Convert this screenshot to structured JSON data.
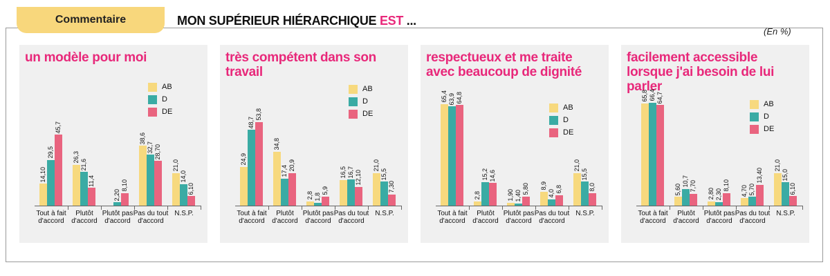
{
  "header": {
    "tab": "Commentaire",
    "title_main": "MON SUPÉRIEUR HIÉRARCHIQUE",
    "title_highlight": "EST",
    "title_end": "...",
    "unit": "(En %)"
  },
  "chart_data": [
    {
      "type": "bar",
      "title": "un modèle pour moi",
      "categories": [
        "Tout à fait d'accord",
        "Plutôt d'accord",
        "Plutôt pas d'accord",
        "Pas du tout d'accord",
        "N.S.P."
      ],
      "series": [
        {
          "name": "AB",
          "color": "#f7d97e",
          "values": [
            14.1,
            26.3,
            null,
            38.6,
            21.0
          ],
          "value_labels": [
            "14,10",
            "26,3",
            null,
            "38,6",
            "21,0"
          ]
        },
        {
          "name": "D",
          "color": "#3aaba4",
          "values": [
            29.5,
            21.6,
            2.2,
            32.7,
            14.0
          ],
          "value_labels": [
            "29,5",
            "21,6",
            "2,20",
            "32,7",
            "14,0"
          ]
        },
        {
          "name": "DE",
          "color": "#e9647f",
          "values": [
            45.7,
            11.4,
            8.1,
            28.7,
            6.1
          ],
          "value_labels": [
            "45,7",
            "11,4",
            "8,10",
            "28,70",
            "6,10"
          ]
        }
      ]
    },
    {
      "type": "bar",
      "title": "très compétent dans son travail",
      "categories": [
        "Tout à fait d'accord",
        "Plutôt d'accord",
        "Plutôt pas d'accord",
        "Pas du tout d'accord",
        "N.S.P."
      ],
      "series": [
        {
          "name": "AB",
          "color": "#f7d97e",
          "values": [
            24.9,
            34.8,
            2.8,
            16.5,
            21.0
          ],
          "value_labels": [
            "24,9",
            "34,8",
            "2,8",
            "16,5",
            "21,0"
          ]
        },
        {
          "name": "D",
          "color": "#3aaba4",
          "values": [
            48.7,
            17.4,
            1.8,
            16.7,
            15.5
          ],
          "value_labels": [
            "48,7",
            "17,4",
            "1,8",
            "16,7",
            "15,5"
          ]
        },
        {
          "name": "DE",
          "color": "#e9647f",
          "values": [
            53.8,
            20.9,
            5.9,
            12.1,
            7.3
          ],
          "value_labels": [
            "53,8",
            "20,9",
            "5,9",
            "12,10",
            "7,30"
          ]
        }
      ]
    },
    {
      "type": "bar",
      "title": "respectueux et me traite avec beaucoup de dignité",
      "categories": [
        "Tout à fait d'accord",
        "Plutôt d'accord",
        "Plutôt pas d'accord",
        "Pas du tout d'accord",
        "N.S.P."
      ],
      "series": [
        {
          "name": "AB",
          "color": "#f7d97e",
          "values": [
            65.4,
            2.8,
            1.9,
            8.9,
            21.0
          ],
          "value_labels": [
            "65,4",
            "2,8",
            "1,90",
            "8,9",
            "21,0"
          ]
        },
        {
          "name": "D",
          "color": "#3aaba4",
          "values": [
            63.9,
            15.2,
            1.4,
            4.0,
            15.5
          ],
          "value_labels": [
            "63,9",
            "15,2",
            "1,40",
            "4,0",
            "15,5"
          ]
        },
        {
          "name": "DE",
          "color": "#e9647f",
          "values": [
            64.8,
            14.6,
            5.8,
            6.8,
            8.0
          ],
          "value_labels": [
            "64,8",
            "14,6",
            "5,80",
            "6,8",
            "8,0"
          ]
        }
      ]
    },
    {
      "type": "bar",
      "title": "facilement accessible lorsque j'ai besoin de lui parler",
      "categories": [
        "Tout à fait d'accord",
        "Plutôt d'accord",
        "Plutôt pas d'accord",
        "Pas du tout d'accord",
        "N.S.P."
      ],
      "series": [
        {
          "name": "AB",
          "color": "#f7d97e",
          "values": [
            65.8,
            5.6,
            2.8,
            4.7,
            21.0
          ],
          "value_labels": [
            "65,8",
            "5,60",
            "2,80",
            "4,70",
            "21,0"
          ]
        },
        {
          "name": "D",
          "color": "#3aaba4",
          "values": [
            66.4,
            10.7,
            2.3,
            5.7,
            15.0
          ],
          "value_labels": [
            "66,4",
            "10,7",
            "2,30",
            "5,70",
            "15,0"
          ]
        },
        {
          "name": "DE",
          "color": "#e9647f",
          "values": [
            64.7,
            7.7,
            8.1,
            13.4,
            6.1
          ],
          "value_labels": [
            "64,7",
            "7,70",
            "8,10",
            "13,40",
            "6,10"
          ]
        }
      ]
    }
  ]
}
